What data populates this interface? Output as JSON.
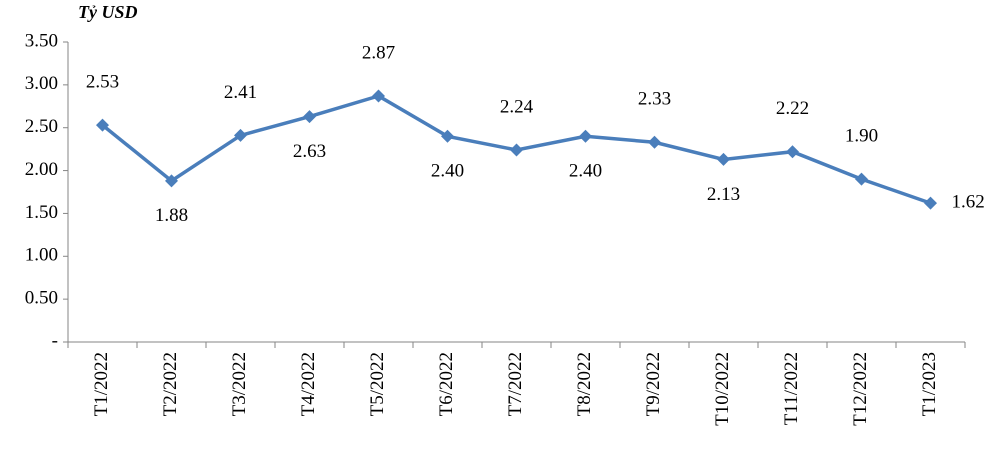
{
  "chart_data": {
    "type": "line",
    "y_axis_title": "Tỷ USD",
    "categories": [
      "T1/2022",
      "T2/2022",
      "T3/2022",
      "T4/2022",
      "T5/2022",
      "T6/2022",
      "T7/2022",
      "T8/2022",
      "T9/2022",
      "T10/2022",
      "T11/2022",
      "T12/2022",
      "T1/2023"
    ],
    "series": [
      {
        "name": "Tỷ USD",
        "color": "#4a7ebb",
        "values": [
          2.53,
          1.88,
          2.41,
          2.63,
          2.87,
          2.4,
          2.24,
          2.4,
          2.33,
          2.13,
          2.22,
          1.9,
          1.62
        ],
        "value_labels": [
          "2.53",
          "1.88",
          "2.41",
          "2.63",
          "2.87",
          "2.40",
          "2.24",
          "2.40",
          "2.33",
          "2.13",
          "2.22",
          "1.90",
          "1.62"
        ]
      }
    ],
    "ylim": [
      0,
      3.5
    ],
    "yticks": [
      {
        "value": 0,
        "label": "-"
      },
      {
        "value": 0.5,
        "label": "0.50"
      },
      {
        "value": 1,
        "label": "1.00"
      },
      {
        "value": 1.5,
        "label": "1.50"
      },
      {
        "value": 2,
        "label": "2.00"
      },
      {
        "value": 2.5,
        "label": "2.50"
      },
      {
        "value": 3,
        "label": "3.00"
      },
      {
        "value": 3.5,
        "label": "3.50"
      }
    ],
    "grid": false
  }
}
